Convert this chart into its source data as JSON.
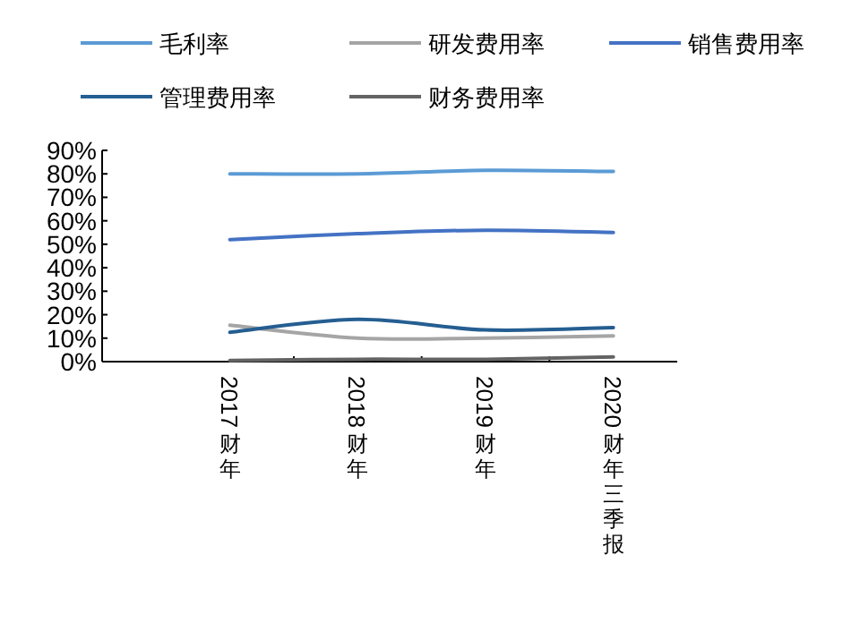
{
  "chart_data": {
    "type": "line",
    "categories": [
      "2017财年",
      "2018财年",
      "2019财年",
      "2020财年三季报"
    ],
    "series": [
      {
        "name": "毛利率",
        "color": "#5b9bd5",
        "values": [
          80,
          80,
          81.5,
          81
        ]
      },
      {
        "name": "研发费用率",
        "color": "#a5a5a5",
        "values": [
          15.5,
          10,
          10,
          11
        ]
      },
      {
        "name": "销售费用率",
        "color": "#4472c4",
        "values": [
          52,
          54.5,
          56,
          55
        ]
      },
      {
        "name": "管理费用率",
        "color": "#255e91",
        "values": [
          12.5,
          18,
          13.5,
          14.5
        ]
      },
      {
        "name": "财务费用率",
        "color": "#636363",
        "values": [
          0.5,
          1,
          1,
          2
        ]
      }
    ],
    "ylim": [
      0,
      90
    ],
    "yticks": [
      {
        "value": 0,
        "label": "0%"
      },
      {
        "value": 10,
        "label": "10%"
      },
      {
        "value": 20,
        "label": "20%"
      },
      {
        "value": 30,
        "label": "30%"
      },
      {
        "value": 40,
        "label": "40%"
      },
      {
        "value": 50,
        "label": "50%"
      },
      {
        "value": 60,
        "label": "60%"
      },
      {
        "value": 70,
        "label": "70%"
      },
      {
        "value": 80,
        "label": "80%"
      },
      {
        "value": 90,
        "label": "90%"
      }
    ],
    "legend": "top",
    "grid": false,
    "marker": "none",
    "line_style": "solid"
  }
}
